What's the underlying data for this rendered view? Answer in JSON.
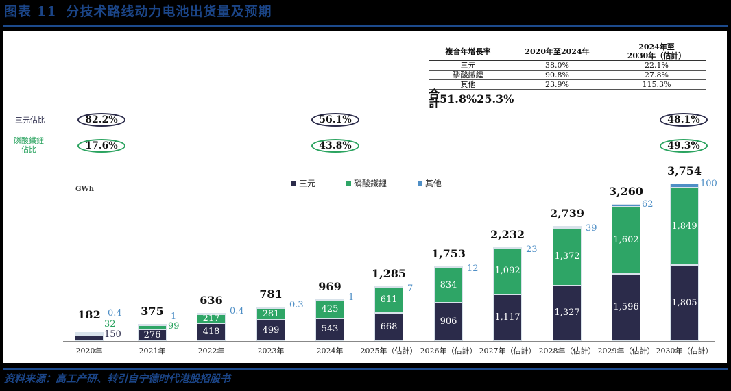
{
  "header": {
    "figure_label": "图表",
    "figure_number": "11",
    "title": "分技术路线动力电池出货量及预期"
  },
  "source": "资料来源：高工产研、转引自宁德时代港股招股书",
  "colors": {
    "ncm": "#2b2b4a",
    "lfp": "#2ea566",
    "other": "#4f8fc6",
    "title_blue": "#1b4587",
    "other_label": "#4f8fc6",
    "lfp_label": "#2aa35f"
  },
  "cagr_table": {
    "headers": [
      "複合年增長率",
      "2020年至2024年",
      "2024年至\n2030年（估計）"
    ],
    "header_col3_line1": "2024年至",
    "header_col3_line2": "2030年（估計）",
    "rows": [
      {
        "label": "三元",
        "v1": "38.0%",
        "v2": "22.1%"
      },
      {
        "label": "磷酸鐵鋰",
        "v1": "90.8%",
        "v2": "27.8%"
      },
      {
        "label": "其他",
        "v1": "23.9%",
        "v2": "115.3%"
      },
      {
        "label": "合計",
        "v1": "51.8%",
        "v2": "25.3%"
      }
    ]
  },
  "share": {
    "ncm_label": "三元佔比",
    "lfp_label_line1": "磷酸鐵鋰",
    "lfp_label_line2": "佔比",
    "points": [
      {
        "year": "2020年",
        "ncm": "82.2%",
        "lfp": "17.6%"
      },
      {
        "year": "2024年",
        "ncm": "56.1%",
        "lfp": "43.8%"
      },
      {
        "year": "2030年（估計）",
        "ncm": "48.1%",
        "lfp": "49.3%"
      }
    ]
  },
  "legend": [
    {
      "label": "三元",
      "color": "#2b2b4a"
    },
    {
      "label": "磷酸鐵鋰",
      "color": "#2ea566"
    },
    {
      "label": "其他",
      "color": "#4f8fc6"
    }
  ],
  "unit": "GWh",
  "chart_data": {
    "type": "bar",
    "stacked": true,
    "title": "分技术路线动力电池出货量及预期",
    "xlabel": "",
    "ylabel": "GWh",
    "categories": [
      "2020年",
      "2021年",
      "2022年",
      "2023年",
      "2024年",
      "2025年（估計）",
      "2026年（估計）",
      "2027年（估計）",
      "2028年（估計）",
      "2029年（估計）",
      "2030年（估計）"
    ],
    "series": [
      {
        "name": "三元",
        "values": [
          150,
          276,
          418,
          499,
          543,
          668,
          906,
          1117,
          1327,
          1596,
          1805
        ]
      },
      {
        "name": "磷酸鐵鋰",
        "values": [
          32,
          99,
          217,
          281,
          425,
          611,
          834,
          1092,
          1372,
          1602,
          1849
        ]
      },
      {
        "name": "其他",
        "values": [
          0.4,
          1,
          0.4,
          0.3,
          1,
          7,
          12,
          23,
          39,
          62,
          100
        ]
      }
    ],
    "totals": [
      182,
      375,
      636,
      781,
      969,
      1285,
      1753,
      2232,
      2739,
      3260,
      3754
    ],
    "legend_position": "top",
    "grid": false,
    "ylim": [
      0,
      3754
    ]
  },
  "bar_labels": {
    "ncm": [
      "150",
      "276",
      "418",
      "499",
      "543",
      "668",
      "906",
      "1,117",
      "1,327",
      "1,596",
      "1,805"
    ],
    "lfp": [
      "32",
      "99",
      "217",
      "281",
      "425",
      "611",
      "834",
      "1,092",
      "1,372",
      "1,602",
      "1,849"
    ],
    "other": [
      "0.4",
      "1",
      "0.4",
      "0.3",
      "1",
      "7",
      "12",
      "23",
      "39",
      "62",
      "100"
    ],
    "totals": [
      "182",
      "375",
      "636",
      "781",
      "969",
      "1,285",
      "1,753",
      "2,232",
      "2,739",
      "3,260",
      "3,754"
    ]
  }
}
